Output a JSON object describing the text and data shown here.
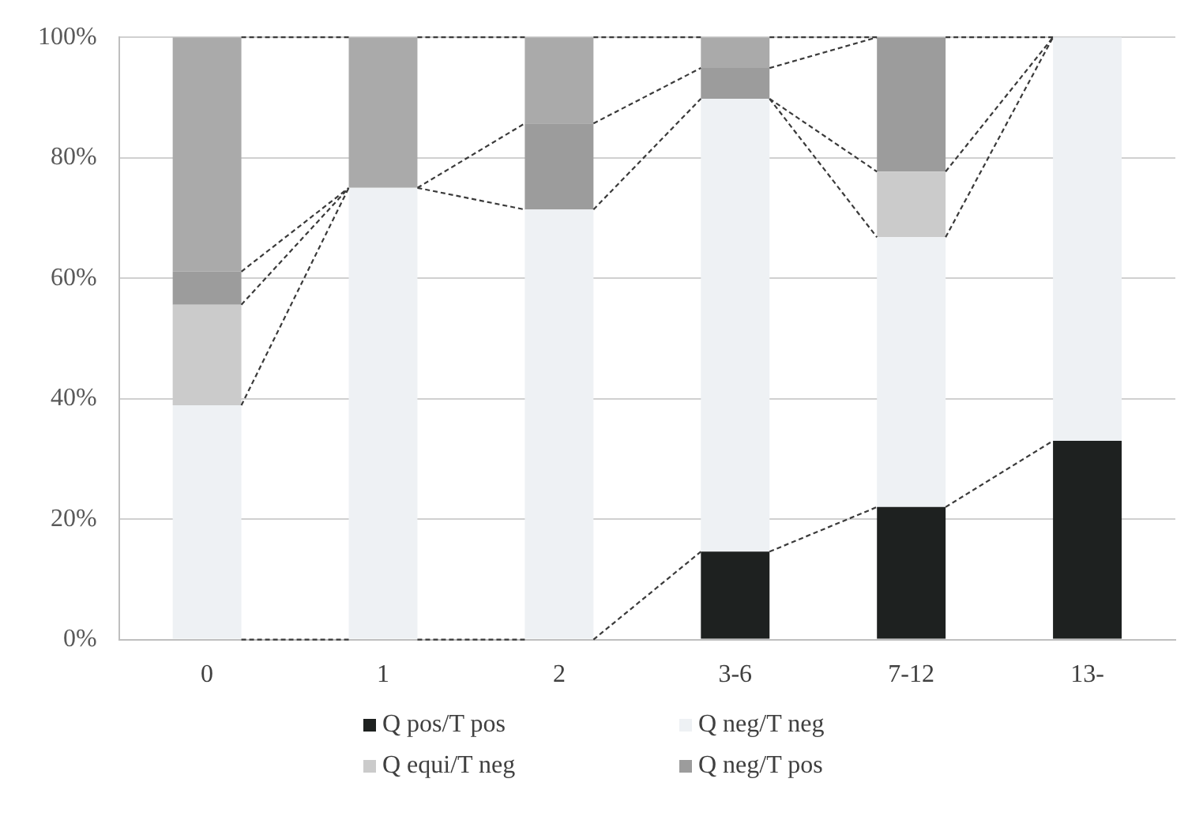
{
  "chart_data": {
    "type": "bar",
    "stacked": true,
    "categories": [
      "0",
      "1",
      "2",
      "3-6",
      "7-12",
      "13-"
    ],
    "series": [
      {
        "name": "Q pos/T pos",
        "color": "#1e2120",
        "values": [
          0,
          0,
          0,
          14.6,
          22,
          33
        ]
      },
      {
        "name": "Q neg/T neg",
        "color": "#eef1f4",
        "values": [
          38.9,
          75,
          71.4,
          75.2,
          44.8,
          67
        ]
      },
      {
        "name": "Q equi/T neg",
        "color": "#cbcbcb",
        "values": [
          16.7,
          0,
          0,
          0,
          10.9,
          0
        ]
      },
      {
        "name": "Q neg/T pos",
        "color": "#9c9c9c",
        "values": [
          5.5,
          0,
          14.3,
          5.1,
          22.3,
          0
        ]
      },
      {
        "color": "#aaaaaa",
        "values": [
          38.9,
          25,
          14.3,
          5.1,
          0,
          0
        ]
      }
    ],
    "ylim": [
      0,
      100
    ],
    "yticks": [
      {
        "value": 0,
        "label": "0%"
      },
      {
        "value": 20,
        "label": "20%"
      },
      {
        "value": 40,
        "label": "40%"
      },
      {
        "value": 60,
        "label": "60%"
      },
      {
        "value": 80,
        "label": "80%"
      },
      {
        "value": 100,
        "label": "100%"
      }
    ],
    "grid": "y",
    "legend": "bottom"
  }
}
